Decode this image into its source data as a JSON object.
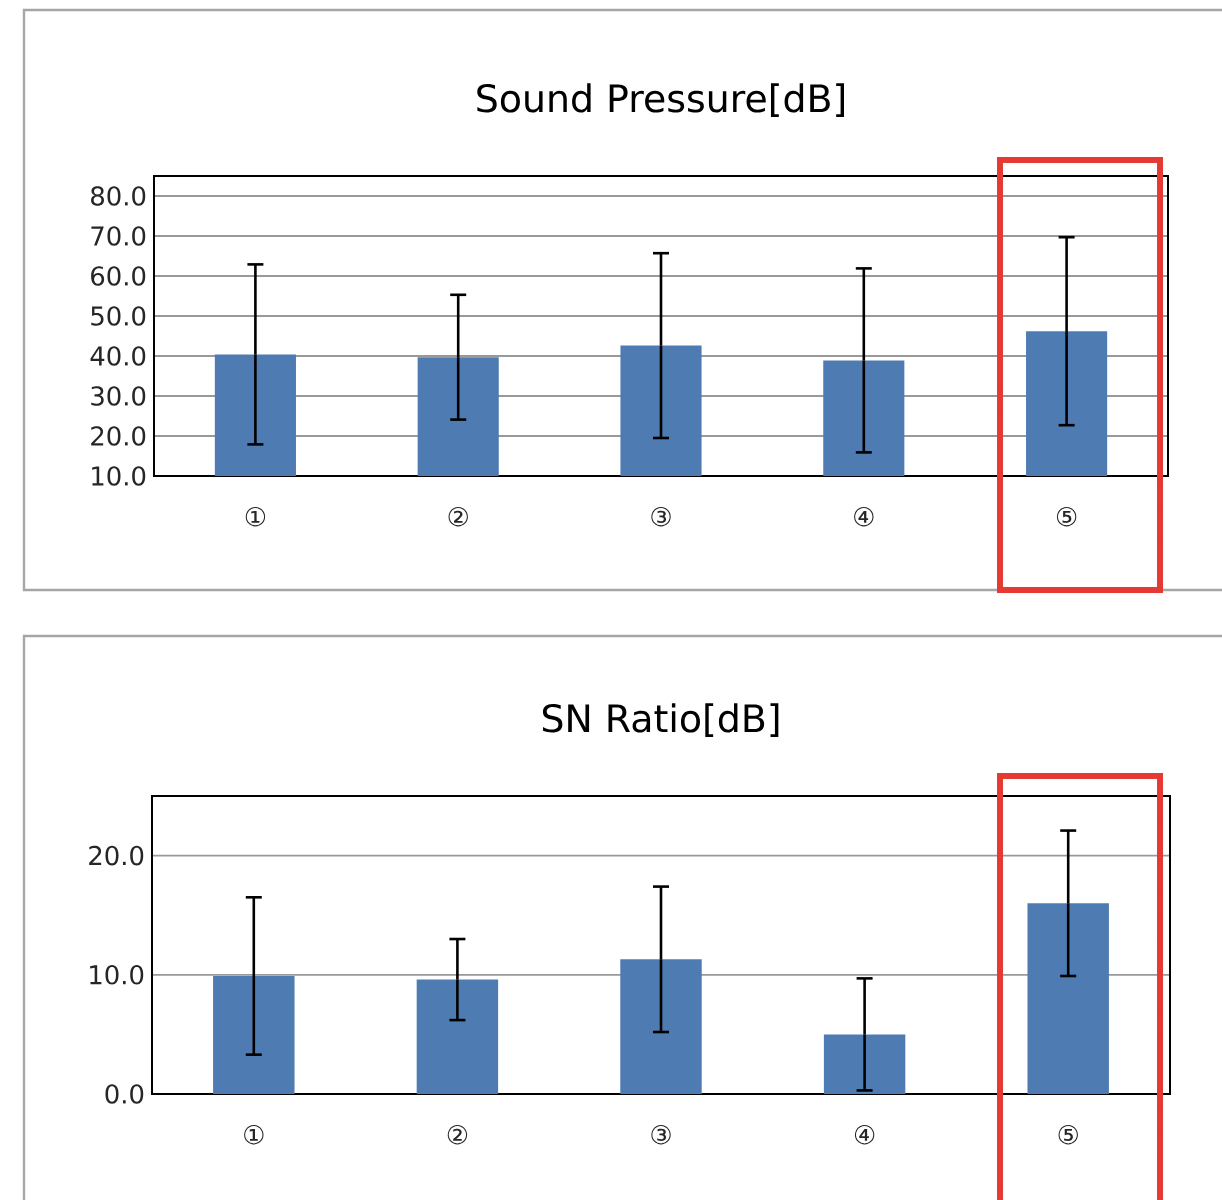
{
  "chart_data": [
    {
      "type": "bar",
      "title": "Sound Pressure[dB]",
      "categories": [
        "①",
        "②",
        "③",
        "④",
        "⑤"
      ],
      "values": [
        40.4,
        39.7,
        42.6,
        38.9,
        46.2
      ],
      "errors": [
        22.5,
        15.6,
        23.1,
        23,
        23.5
      ],
      "color": "#4f7bb3",
      "ylim": [
        10,
        85
      ],
      "yticks": [
        {
          "value": 10,
          "label": "10.0"
        },
        {
          "value": 20,
          "label": "20.0"
        },
        {
          "value": 30,
          "label": "30.0"
        },
        {
          "value": 40,
          "label": "40.0"
        },
        {
          "value": 50,
          "label": "50.0"
        },
        {
          "value": 60,
          "label": "60.0"
        },
        {
          "value": 70,
          "label": "70.0"
        },
        {
          "value": 80,
          "label": "80.0"
        }
      ],
      "grid": "y"
    },
    {
      "type": "bar",
      "title": "SN Ratio[dB]",
      "categories": [
        "①",
        "②",
        "③",
        "④",
        "⑤"
      ],
      "values": [
        9.9,
        9.6,
        11.3,
        5.0,
        16.0
      ],
      "errors": [
        6.6,
        3.4,
        6.1,
        4.7,
        6.1
      ],
      "color": "#4f7bb3",
      "ylim": [
        0,
        25
      ],
      "yticks": [
        {
          "value": 0,
          "label": "0.0"
        },
        {
          "value": 10,
          "label": "10.0"
        },
        {
          "value": 20,
          "label": "20.0"
        }
      ],
      "grid": "y"
    }
  ]
}
